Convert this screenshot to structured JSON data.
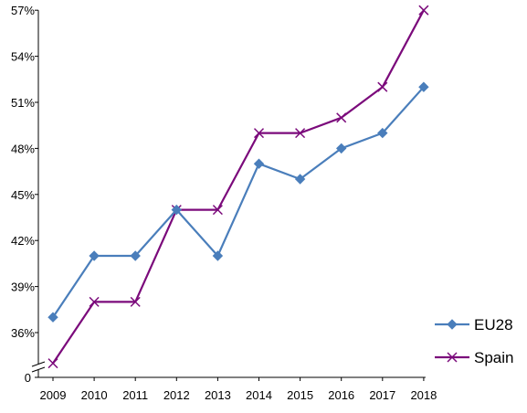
{
  "chart_data": {
    "type": "line",
    "x": [
      "2009",
      "2010",
      "2011",
      "2012",
      "2013",
      "2014",
      "2015",
      "2016",
      "2017",
      "2018"
    ],
    "series": [
      {
        "name": "EU28",
        "values": [
          37,
          41,
          41,
          44,
          41,
          47,
          46,
          48,
          49,
          52
        ],
        "color": "#4a7ebb",
        "marker": "diamond"
      },
      {
        "name": "Spain",
        "values": [
          34,
          38,
          38,
          44,
          44,
          49,
          49,
          50,
          52,
          57
        ],
        "color": "#7b0a7b",
        "marker": "x"
      }
    ],
    "y_ticks": [
      {
        "value": 36,
        "label": "36%"
      },
      {
        "value": 39,
        "label": "39%"
      },
      {
        "value": 42,
        "label": "42%"
      },
      {
        "value": 45,
        "label": "45%"
      },
      {
        "value": 48,
        "label": "48%"
      },
      {
        "value": 51,
        "label": "51%"
      },
      {
        "value": 54,
        "label": "54%"
      },
      {
        "value": 57,
        "label": "57%"
      }
    ],
    "y_origin_label": "0",
    "y_axis_break": true,
    "ylim": [
      34,
      57
    ],
    "grid": false,
    "legend_position": "right",
    "title": "",
    "xlabel": "",
    "ylabel": ""
  }
}
